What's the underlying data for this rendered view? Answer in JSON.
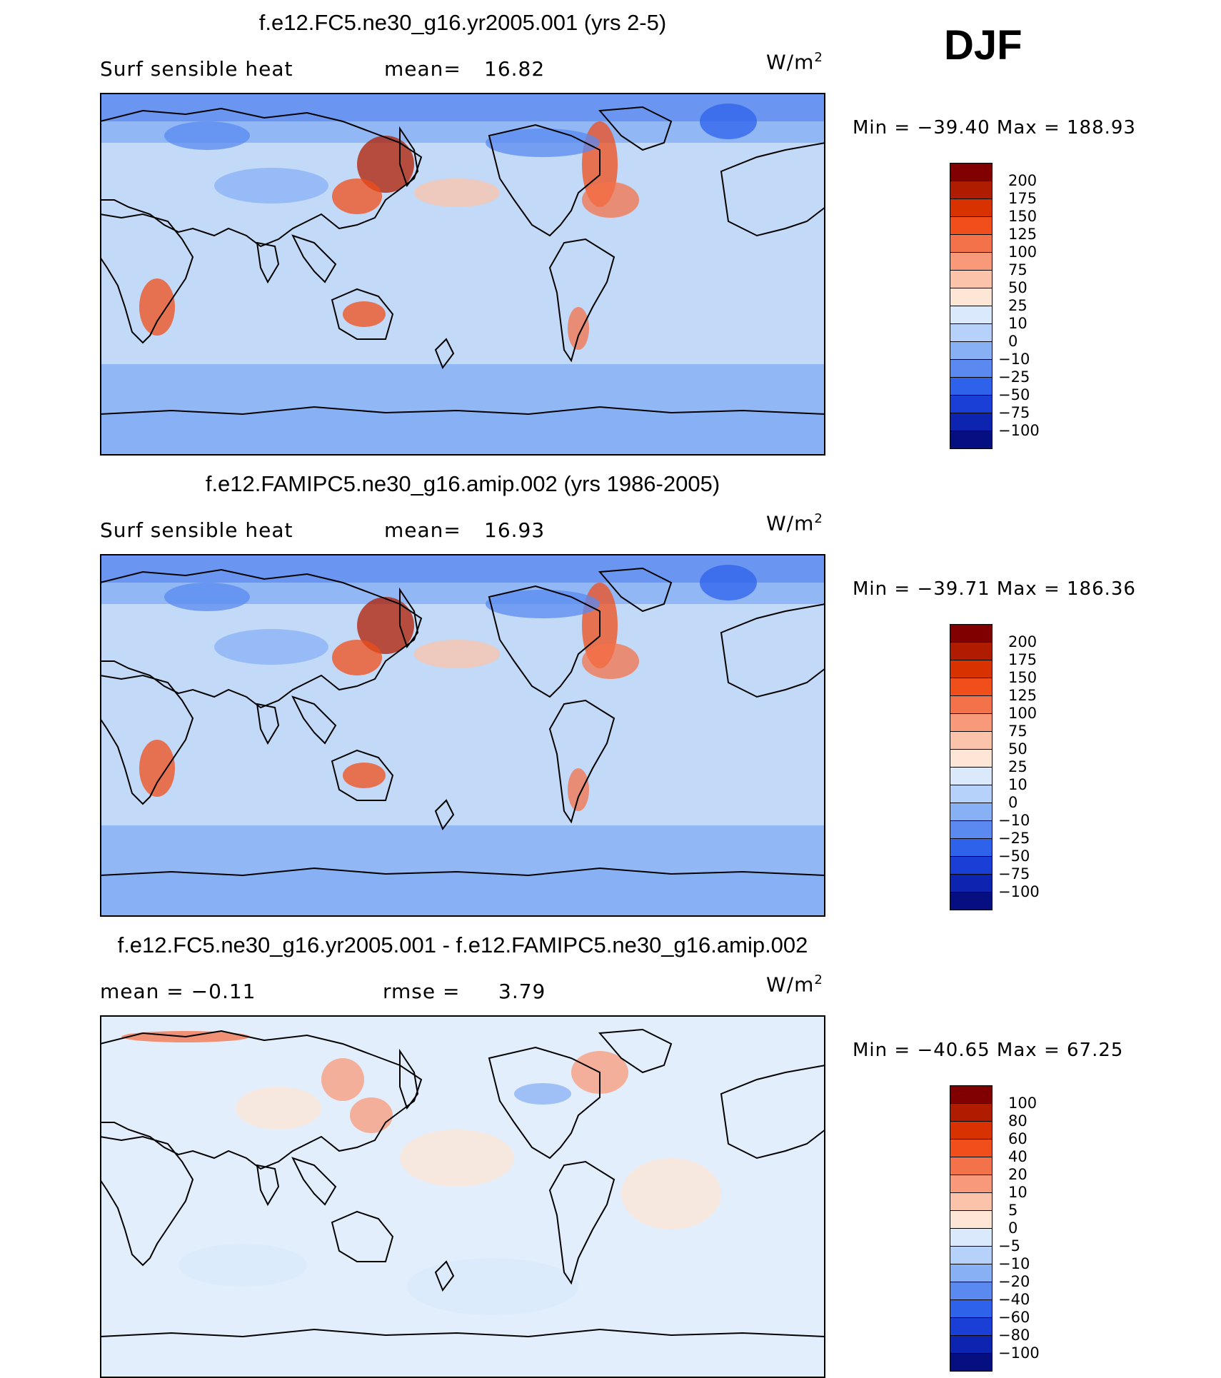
{
  "season": "DJF",
  "panels": [
    {
      "title": "f.e12.FC5.ne30_g16.yr2005.001 (yrs 2-5)",
      "left_label": "Surf sensible heat",
      "stat_label": "mean=",
      "stat_value": "16.82",
      "unit": "W/m",
      "unit_exp": "2",
      "minmax": "Min = −39.40 Max = 188.93",
      "palette": "absolute",
      "levels": [
        "200",
        "175",
        "150",
        "125",
        "100",
        "75",
        "50",
        "25",
        "10",
        "0",
        "−10",
        "−25",
        "−50",
        "−75",
        "−100"
      ]
    },
    {
      "title": "f.e12.FAMIPC5.ne30_g16.amip.002 (yrs 1986-2005)",
      "left_label": "Surf sensible heat",
      "stat_label": "mean=",
      "stat_value": "16.93",
      "unit": "W/m",
      "unit_exp": "2",
      "minmax": "Min = −39.71 Max = 186.36",
      "palette": "absolute",
      "levels": [
        "200",
        "175",
        "150",
        "125",
        "100",
        "75",
        "50",
        "25",
        "10",
        "0",
        "−10",
        "−25",
        "−50",
        "−75",
        "−100"
      ]
    },
    {
      "title": "f.e12.FC5.ne30_g16.yr2005.001 - f.e12.FAMIPC5.ne30_g16.amip.002",
      "left_label": "mean =  −0.11",
      "stat_label": "rmse =",
      "stat_value": "3.79",
      "unit": "W/m",
      "unit_exp": "2",
      "minmax": "Min = −40.65 Max =  67.25",
      "palette": "difference",
      "levels": [
        "100",
        "80",
        "60",
        "40",
        "20",
        "10",
        "5",
        "0",
        "−5",
        "−10",
        "−20",
        "−40",
        "−60",
        "−80",
        "−100"
      ]
    }
  ],
  "colors": {
    "absolute": [
      "#800000",
      "#b01c00",
      "#d83200",
      "#f04e1a",
      "#f4724a",
      "#f8997a",
      "#fbc4aa",
      "#fde6d6",
      "#dae9fb",
      "#b6d1fa",
      "#88b0f5",
      "#5a8af0",
      "#2f62eb",
      "#1a3fd6",
      "#0c24b0",
      "#050f80"
    ],
    "difference": [
      "#800000",
      "#b01c00",
      "#d83200",
      "#f04e1a",
      "#f4724a",
      "#f8997a",
      "#fbc4aa",
      "#fde6d6",
      "#dae9fb",
      "#b6d1fa",
      "#88b0f5",
      "#5a8af0",
      "#2f62eb",
      "#1a3fd6",
      "#0c24b0",
      "#050f80"
    ],
    "ocean_abs": "#c2d9f7",
    "ocean_diff": "#e2eefc",
    "coast": "#000000"
  }
}
